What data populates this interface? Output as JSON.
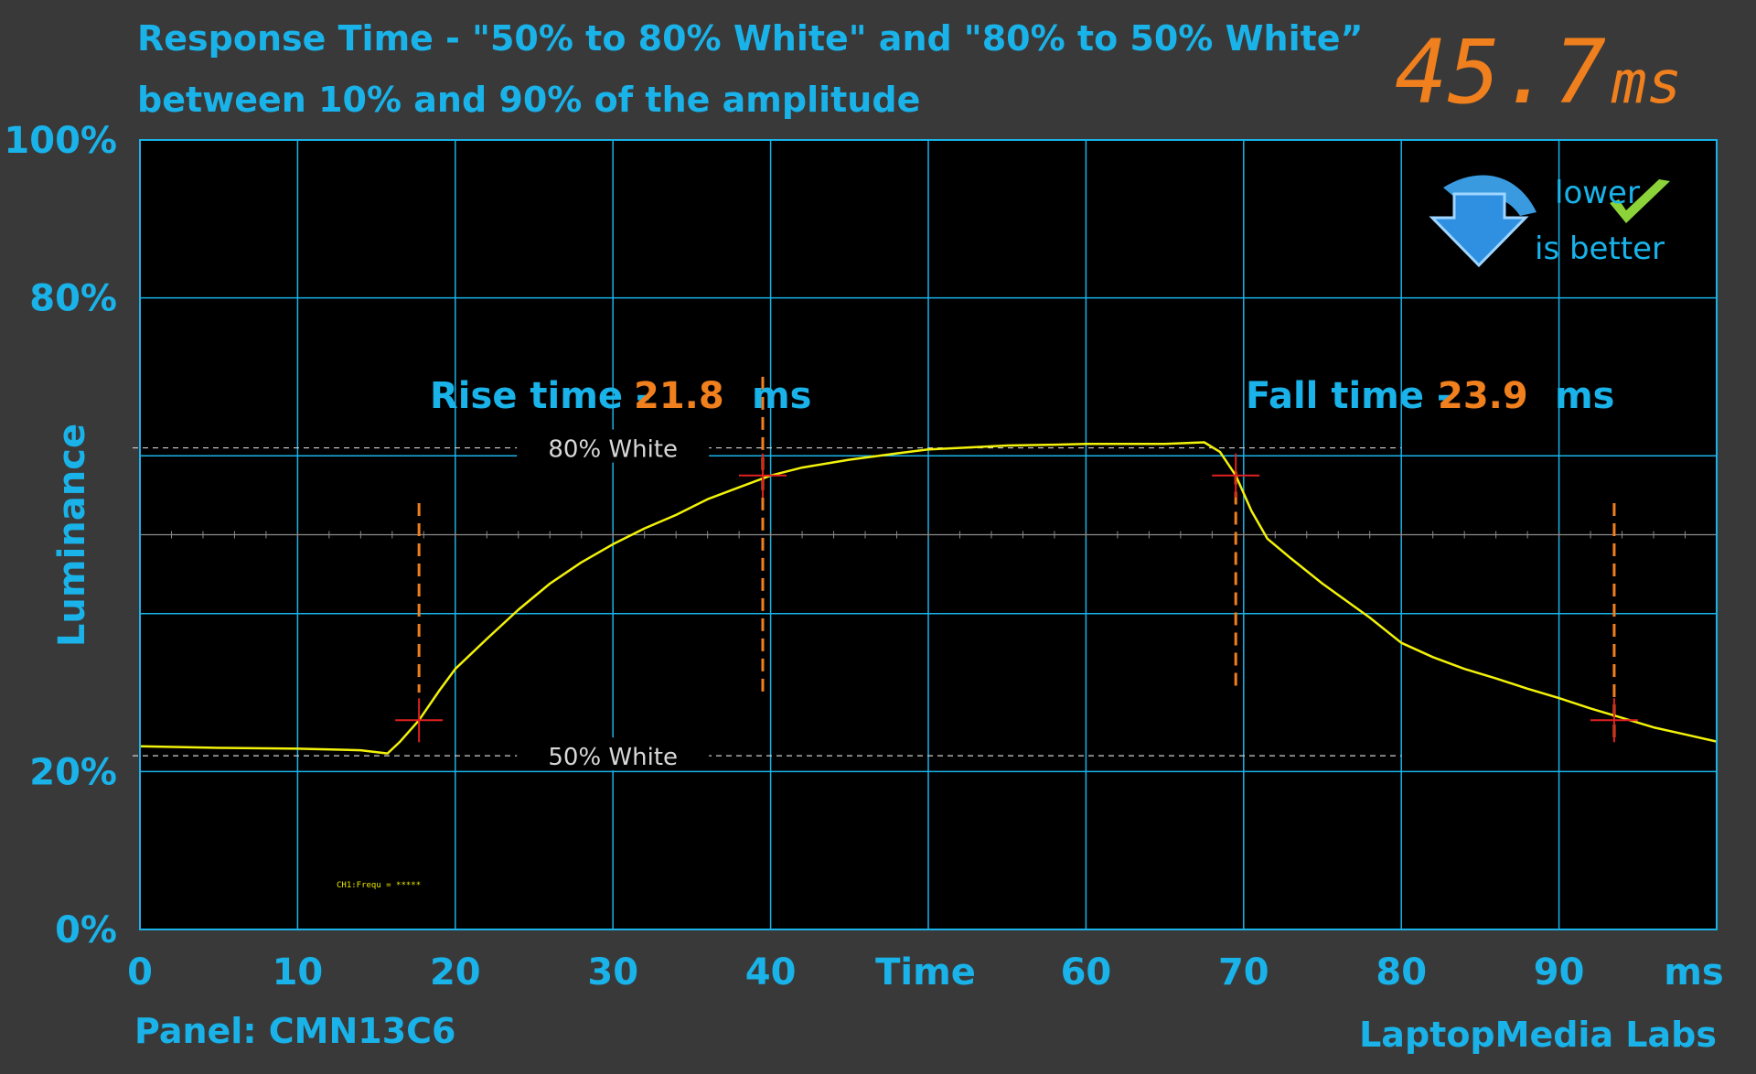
{
  "title": {
    "line1": "Response Time - \"50% to 80% White\" and \"80% to 50% White”",
    "line2": "between 10% and 90% of the amplitude"
  },
  "total": {
    "value": "45.7",
    "unit": "ms"
  },
  "badge": {
    "line1": "lower",
    "line2": "is better"
  },
  "rise": {
    "label": "Rise time -",
    "value": "21.8",
    "unit": "ms"
  },
  "fall": {
    "label": "Fall time -",
    "value": "23.9",
    "unit": "ms"
  },
  "footer": {
    "panel": "Panel: CMN13C6",
    "brand": "LaptopMedia Labs"
  },
  "osc_note": "CH1:Frequ = *****",
  "colors": {
    "background": "#393939",
    "plot_bg": "#000000",
    "grid": "#19b3ea",
    "text": "#19b3ea",
    "accent": "#f07f1d",
    "signal": "#f2f20a",
    "marker": "#e02020"
  },
  "chart_data": {
    "type": "line",
    "xlabel": "Time",
    "ylabel": "Luminance",
    "x_unit": "ms",
    "xlim": [
      0,
      100
    ],
    "ylim": [
      0,
      100
    ],
    "x_ticks": [
      0,
      10,
      20,
      30,
      40,
      60,
      70,
      80,
      90
    ],
    "y_ticks": [
      {
        "value": 100,
        "label": "100%"
      },
      {
        "value": 80,
        "label": "80%"
      },
      {
        "value": 20,
        "label": "20%"
      },
      {
        "value": 0,
        "label": "0%"
      }
    ],
    "grid": true,
    "reference_lines": [
      {
        "y": 61,
        "label": "80% White"
      },
      {
        "y": 22,
        "label": "50% White"
      }
    ],
    "markers": [
      {
        "x": 17.7,
        "y": 26.5
      },
      {
        "x": 39.5,
        "y": 57.5
      },
      {
        "x": 69.5,
        "y": 57.5
      },
      {
        "x": 93.5,
        "y": 26.5
      }
    ],
    "series": [
      {
        "x": [
          0,
          5,
          10,
          14,
          15.7,
          16.5,
          17.7,
          19,
          20,
          22,
          24,
          26,
          28,
          30,
          32,
          34,
          36,
          38,
          40,
          42,
          45,
          48,
          50,
          52,
          55,
          58,
          60,
          62,
          65,
          67.5,
          68.5,
          69.5,
          70.5,
          71.5,
          73,
          75,
          78,
          80,
          82,
          84,
          86,
          88,
          90,
          92,
          94,
          96,
          98,
          100
        ],
        "y": [
          23.2,
          23.0,
          22.9,
          22.7,
          22.3,
          23.8,
          26.5,
          30.3,
          33.0,
          36.8,
          40.5,
          43.8,
          46.5,
          48.8,
          50.8,
          52.5,
          54.5,
          56.0,
          57.5,
          58.5,
          59.5,
          60.3,
          60.8,
          61.0,
          61.3,
          61.4,
          61.5,
          61.5,
          61.5,
          61.7,
          60.5,
          57.5,
          53.0,
          49.5,
          47.0,
          43.8,
          39.5,
          36.3,
          34.5,
          33.0,
          31.8,
          30.5,
          29.3,
          28.0,
          26.8,
          25.6,
          24.7,
          23.8
        ]
      }
    ]
  }
}
